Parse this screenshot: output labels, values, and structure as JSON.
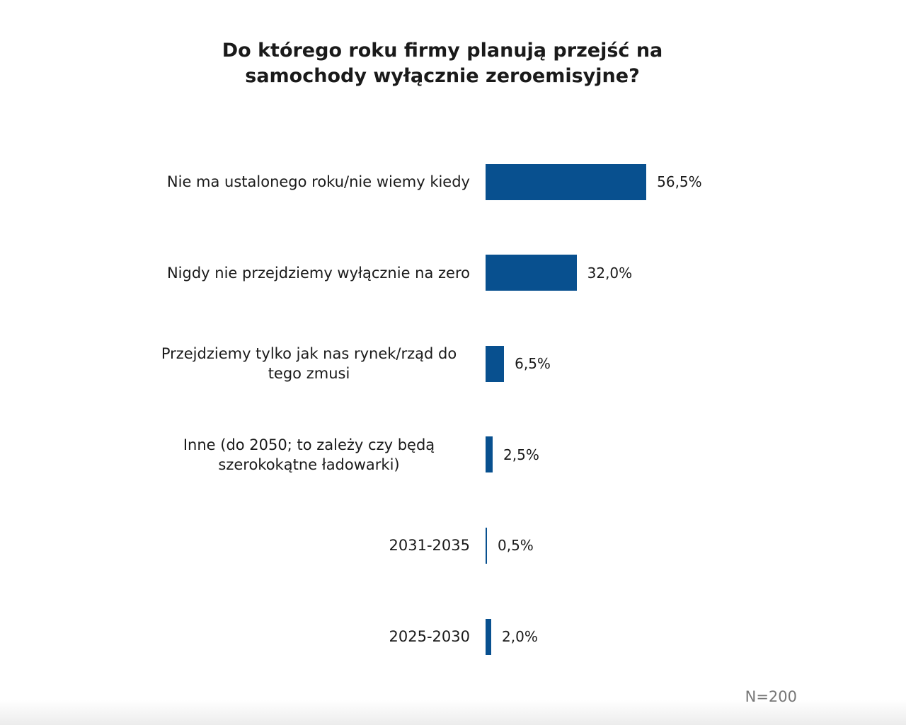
{
  "chart_data": {
    "type": "bar",
    "orientation": "horizontal",
    "title": "Do którego roku firmy planują przejść na samochody wyłącznie zeroemisyjne?",
    "categories": [
      "Nie ma ustalonego roku/nie wiemy kiedy",
      "Nigdy nie przejdziemy wyłącznie na zero",
      "Przejdziemy tylko jak nas rynek/rząd do tego zmusi",
      "Inne (do 2050; to zależy czy będą szerokokątne ładowarki)",
      "2031-2035",
      "2025-2030"
    ],
    "values": [
      56.5,
      32.0,
      6.5,
      2.5,
      0.5,
      2.0
    ],
    "value_labels": [
      "56,5%",
      "32,0%",
      "6,5%",
      "2,5%",
      "0,5%",
      "2,0%"
    ],
    "color": "#08508f",
    "annotation": "N=200"
  }
}
